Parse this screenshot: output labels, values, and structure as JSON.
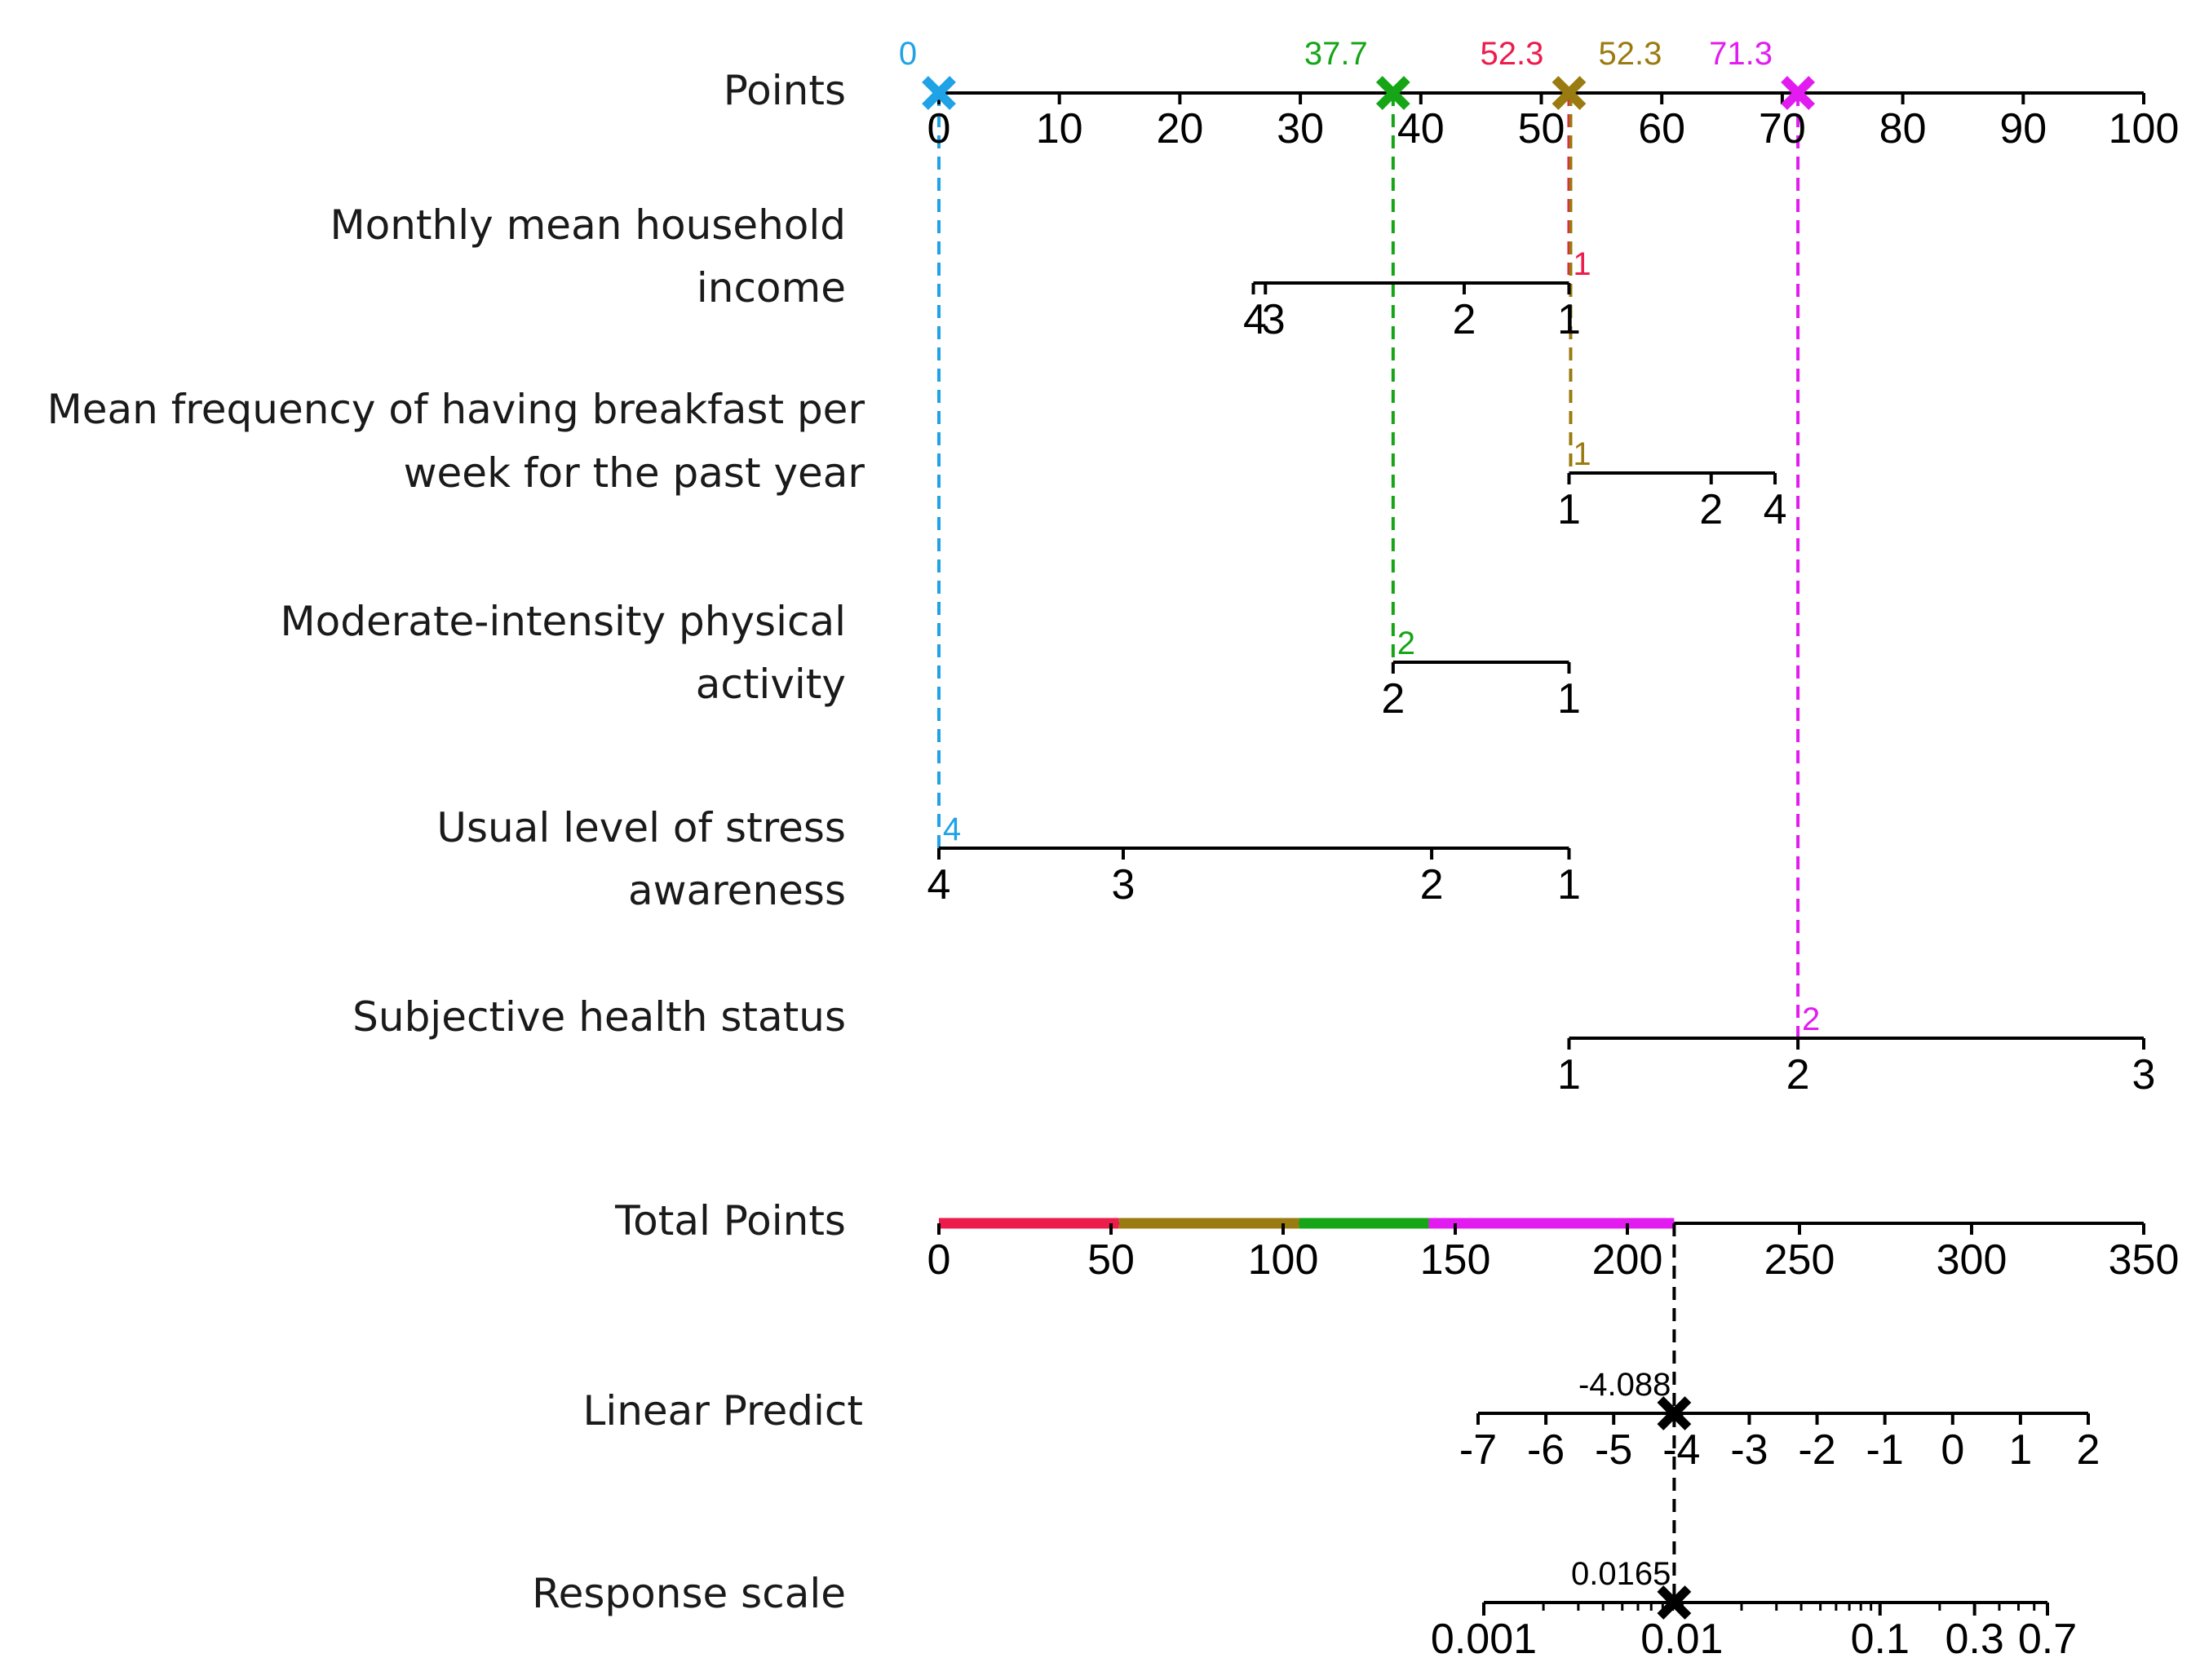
{
  "chart_data": {
    "type": "nomogram",
    "colors": {
      "obs0": "#1fa2e6",
      "obs1": "#16a517",
      "obs2": "#ec1c4c",
      "obs3": "#9a7b11",
      "obs4": "#e21cf0",
      "axis": "#000000"
    },
    "points_axis": {
      "label": "Points",
      "range": [
        0,
        100
      ],
      "ticks": [
        "0",
        "10",
        "20",
        "30",
        "40",
        "50",
        "60",
        "70",
        "80",
        "90",
        "100"
      ],
      "tick_values": [
        0,
        10,
        20,
        30,
        40,
        50,
        60,
        70,
        80,
        90,
        100
      ]
    },
    "point_markers": [
      {
        "value": 0,
        "label": "0",
        "color_key": "obs0"
      },
      {
        "value": 37.7,
        "label": "37.7",
        "color_key": "obs1"
      },
      {
        "value": 52.3,
        "label": "52.3",
        "color_key": "obs2",
        "hidden_marker": true
      },
      {
        "value": 52.3,
        "label": "52.3",
        "color_key": "obs3"
      },
      {
        "value": 71.3,
        "label": "71.3",
        "color_key": "obs4"
      }
    ],
    "variables": [
      {
        "label_lines": [
          "Monthly mean household",
          "income"
        ],
        "levels": [
          {
            "label": "4",
            "points": 26.1
          },
          {
            "label": "3",
            "points": 27.1
          },
          {
            "label": "2",
            "points": 43.6
          },
          {
            "label": "1",
            "points": 52.3
          }
        ],
        "selected": {
          "label": "1",
          "points": 52.3,
          "color_key": "obs2"
        }
      },
      {
        "label_lines": [
          "Mean frequency of having breakfast per",
          "week for the past year"
        ],
        "levels": [
          {
            "label": "1",
            "points": 52.3
          },
          {
            "label": "2",
            "points": 64.1
          },
          {
            "label": "4",
            "points": 69.4
          }
        ],
        "selected": {
          "label": "1",
          "points": 52.3,
          "color_key": "obs3"
        }
      },
      {
        "label_lines": [
          "Moderate-intensity physical",
          "activity"
        ],
        "levels": [
          {
            "label": "2",
            "points": 37.7
          },
          {
            "label": "1",
            "points": 52.3
          }
        ],
        "selected": {
          "label": "2",
          "points": 37.7,
          "color_key": "obs1"
        }
      },
      {
        "label_lines": [
          "Usual level of stress",
          "awareness"
        ],
        "levels": [
          {
            "label": "4",
            "points": 0
          },
          {
            "label": "3",
            "points": 15.3
          },
          {
            "label": "2",
            "points": 40.9
          },
          {
            "label": "1",
            "points": 52.3
          }
        ],
        "selected": {
          "label": "4",
          "points": 0,
          "color_key": "obs0"
        }
      },
      {
        "label_lines": [
          "Subjective health status"
        ],
        "levels": [
          {
            "label": "1",
            "points": 52.3
          },
          {
            "label": "2",
            "points": 71.3
          },
          {
            "label": "3",
            "points": 100
          }
        ],
        "selected": {
          "label": "2",
          "points": 71.3,
          "color_key": "obs4"
        }
      }
    ],
    "total_points": {
      "label": "Total Points",
      "range": [
        0,
        350
      ],
      "ticks": [
        "0",
        "50",
        "100",
        "150",
        "200",
        "250",
        "300",
        "350"
      ],
      "tick_values": [
        0,
        50,
        100,
        150,
        200,
        250,
        300,
        350
      ],
      "segments": [
        {
          "from": 0,
          "to": 52.3,
          "color_key": "obs2"
        },
        {
          "from": 52.3,
          "to": 104.6,
          "color_key": "obs3"
        },
        {
          "from": 104.6,
          "to": 142.3,
          "color_key": "obs1"
        },
        {
          "from": 142.3,
          "to": 213.6,
          "color_key": "obs4"
        }
      ],
      "total": 213.6
    },
    "linear_predict": {
      "label": "Linear Predict",
      "range": [
        -7,
        2
      ],
      "ticks": [
        "-7",
        "-6",
        "-5",
        "-4",
        "-3",
        "-2",
        "-1",
        "0",
        "1",
        "2"
      ],
      "tick_values": [
        -7,
        -6,
        -5,
        -4,
        -3,
        -2,
        -1,
        0,
        1,
        2
      ],
      "value": -4.088,
      "value_label": "-4.088"
    },
    "response_scale": {
      "label": "Response scale",
      "ticks": [
        "0.001",
        "0.01",
        "0.1",
        "0.3",
        "0.7"
      ],
      "tick_values": [
        0.001,
        0.01,
        0.1,
        0.3,
        0.7
      ],
      "minor_values": [
        0.002,
        0.003,
        0.004,
        0.005,
        0.006,
        0.007,
        0.008,
        0.009,
        0.02,
        0.03,
        0.04,
        0.05,
        0.06,
        0.07,
        0.08,
        0.09,
        0.2,
        0.4,
        0.5,
        0.6
      ],
      "value": 0.0165,
      "value_label": "0.0165"
    }
  }
}
